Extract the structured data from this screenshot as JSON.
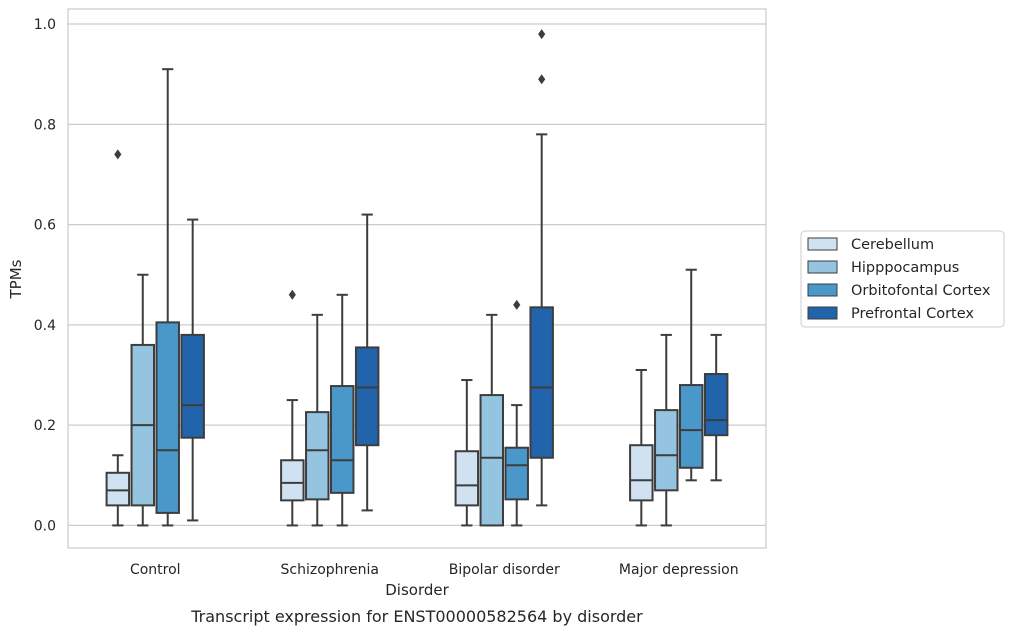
{
  "chart_data": {
    "type": "box",
    "title": "",
    "caption": "Transcript expression for ENST00000582564 by disorder",
    "xlabel": "Disorder",
    "ylabel": "TPMs",
    "ylim": [
      -0.045,
      1.03
    ],
    "yticks": [
      "0.0",
      "0.2",
      "0.4",
      "0.6",
      "0.8",
      "1.0"
    ],
    "categories": [
      "Control",
      "Schizophrenia",
      "Bipolar disorder",
      "Major depression"
    ],
    "grid": "horizontal",
    "legend_placement": "right",
    "series": [
      {
        "name": "Cerebellum",
        "color": "#d0e1f2",
        "boxes": [
          {
            "min": 0.0,
            "q1": 0.04,
            "median": 0.07,
            "q3": 0.105,
            "max": 0.14,
            "outliers": [
              0.74
            ]
          },
          {
            "min": 0.0,
            "q1": 0.05,
            "median": 0.085,
            "q3": 0.13,
            "max": 0.25,
            "outliers": [
              0.46
            ]
          },
          {
            "min": 0.0,
            "q1": 0.04,
            "median": 0.08,
            "q3": 0.148,
            "max": 0.29,
            "outliers": []
          },
          {
            "min": 0.0,
            "q1": 0.05,
            "median": 0.09,
            "q3": 0.16,
            "max": 0.31,
            "outliers": []
          }
        ]
      },
      {
        "name": "Hipppocampus",
        "color": "#94c4df",
        "boxes": [
          {
            "min": 0.0,
            "q1": 0.04,
            "median": 0.2,
            "q3": 0.36,
            "max": 0.5,
            "outliers": []
          },
          {
            "min": 0.0,
            "q1": 0.052,
            "median": 0.15,
            "q3": 0.226,
            "max": 0.42,
            "outliers": []
          },
          {
            "min": 0.0,
            "q1": 0.0,
            "median": 0.135,
            "q3": 0.26,
            "max": 0.42,
            "outliers": []
          },
          {
            "min": 0.0,
            "q1": 0.07,
            "median": 0.14,
            "q3": 0.23,
            "max": 0.38,
            "outliers": []
          }
        ]
      },
      {
        "name": "Orbitofontal Cortex",
        "color": "#4a98c9",
        "boxes": [
          {
            "min": 0.0,
            "q1": 0.025,
            "median": 0.15,
            "q3": 0.405,
            "max": 0.91,
            "outliers": []
          },
          {
            "min": 0.0,
            "q1": 0.065,
            "median": 0.13,
            "q3": 0.278,
            "max": 0.46,
            "outliers": []
          },
          {
            "min": 0.0,
            "q1": 0.052,
            "median": 0.12,
            "q3": 0.155,
            "max": 0.24,
            "outliers": [
              0.44
            ]
          },
          {
            "min": 0.09,
            "q1": 0.115,
            "median": 0.19,
            "q3": 0.28,
            "max": 0.51,
            "outliers": []
          }
        ]
      },
      {
        "name": "Prefrontal Cortex",
        "color": "#2164ab",
        "boxes": [
          {
            "min": 0.01,
            "q1": 0.175,
            "median": 0.24,
            "q3": 0.38,
            "max": 0.61,
            "outliers": []
          },
          {
            "min": 0.03,
            "q1": 0.16,
            "median": 0.275,
            "q3": 0.355,
            "max": 0.62,
            "outliers": []
          },
          {
            "min": 0.04,
            "q1": 0.135,
            "median": 0.275,
            "q3": 0.435,
            "max": 0.78,
            "outliers": [
              0.89,
              0.98
            ]
          },
          {
            "min": 0.09,
            "q1": 0.18,
            "median": 0.21,
            "q3": 0.302,
            "max": 0.38,
            "outliers": []
          }
        ]
      }
    ]
  }
}
